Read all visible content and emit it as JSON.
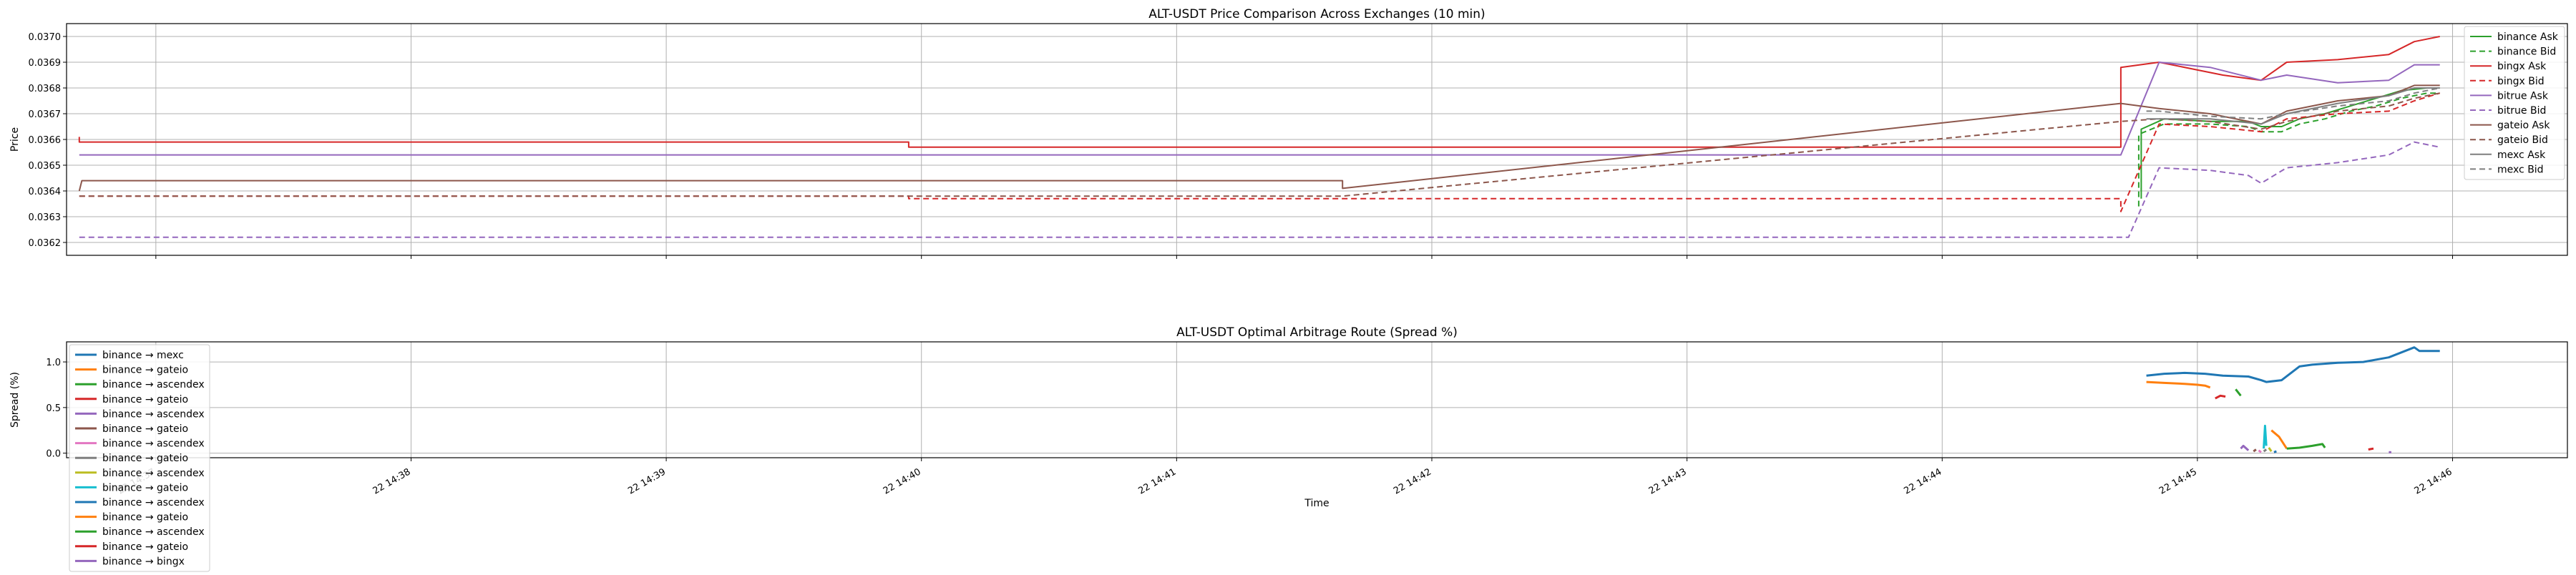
{
  "colors": {
    "binance": "#2ca02c",
    "bingx": "#d62728",
    "bitrue": "#9467bd",
    "gateio": "#8c564b",
    "mexc": "#7f7f7f",
    "grid": "#b0b0b0"
  },
  "chart_data": [
    {
      "type": "line",
      "title": "ALT-USDT Price Comparison Across Exchanges (10 min)",
      "xlabel": "",
      "ylabel": "Price",
      "x_unit": "minutes after 14:36",
      "xlim": [
        0.4,
        10.2
      ],
      "ylim": [
        0.03615,
        0.03705
      ],
      "yticks": [
        0.0362,
        0.0363,
        0.0364,
        0.0365,
        0.0366,
        0.0367,
        0.0368,
        0.0369,
        0.037
      ],
      "ytick_labels": [
        "0.0362",
        "0.0363",
        "0.0364",
        "0.0365",
        "0.0366",
        "0.0367",
        "0.0368",
        "0.0369",
        "0.0370"
      ],
      "grid": true,
      "legend_position": "upper-right",
      "series": [
        {
          "name": "binance Ask",
          "color": "#2ca02c",
          "dash": "solid",
          "x": [
            8.53,
            8.53,
            8.62,
            8.8,
            8.95,
            9.0,
            9.08,
            9.15,
            9.25,
            9.35,
            9.45,
            9.55,
            9.65,
            9.7
          ],
          "y": [
            0.03637,
            0.03664,
            0.03668,
            0.03667,
            0.03667,
            0.03665,
            0.03665,
            0.03668,
            0.0367,
            0.03673,
            0.03676,
            0.03679,
            0.0368,
            0.0368
          ]
        },
        {
          "name": "binance Bid",
          "color": "#2ca02c",
          "dash": "dashed",
          "x": [
            8.52,
            8.52,
            8.62,
            8.8,
            8.95,
            9.0,
            9.08,
            9.15,
            9.25,
            9.35,
            9.45,
            9.55,
            9.65,
            9.7
          ],
          "y": [
            0.03634,
            0.03662,
            0.03666,
            0.03666,
            0.03665,
            0.03663,
            0.03663,
            0.03666,
            0.03668,
            0.03671,
            0.03673,
            0.03676,
            0.03678,
            0.03678
          ]
        },
        {
          "name": "bingx Ask",
          "color": "#d62728",
          "dash": "solid",
          "x": [
            0.45,
            0.45,
            0.46,
            3.7,
            3.7,
            8.45,
            8.45,
            8.6,
            8.85,
            9.0,
            9.1,
            9.3,
            9.5,
            9.6,
            9.7
          ],
          "y": [
            0.03661,
            0.03659,
            0.03659,
            0.03659,
            0.03657,
            0.03657,
            0.03688,
            0.0369,
            0.03685,
            0.03683,
            0.0369,
            0.03691,
            0.03693,
            0.03698,
            0.037
          ]
        },
        {
          "name": "bingx Bid",
          "color": "#d62728",
          "dash": "dashed",
          "x": [
            0.45,
            3.7,
            3.7,
            8.45,
            8.45,
            8.6,
            8.8,
            9.0,
            9.1,
            9.3,
            9.5,
            9.6,
            9.7
          ],
          "y": [
            0.03638,
            0.03638,
            0.03637,
            0.03637,
            0.03632,
            0.03666,
            0.03665,
            0.03663,
            0.03668,
            0.0367,
            0.03671,
            0.03675,
            0.03678
          ]
        },
        {
          "name": "bitrue Ask",
          "color": "#9467bd",
          "dash": "solid",
          "x": [
            0.45,
            8.45,
            8.6,
            8.8,
            9.0,
            9.1,
            9.3,
            9.5,
            9.6,
            9.7
          ],
          "y": [
            0.03654,
            0.03654,
            0.0369,
            0.03688,
            0.03683,
            0.03685,
            0.03682,
            0.03683,
            0.03689,
            0.03689
          ]
        },
        {
          "name": "bitrue Bid",
          "color": "#9467bd",
          "dash": "dashed",
          "x": [
            0.45,
            8.48,
            8.6,
            8.8,
            8.95,
            9.0,
            9.1,
            9.3,
            9.5,
            9.6,
            9.7
          ],
          "y": [
            0.03622,
            0.03622,
            0.03649,
            0.03648,
            0.03646,
            0.03643,
            0.03649,
            0.03651,
            0.03654,
            0.03659,
            0.03657
          ]
        },
        {
          "name": "gateio Ask",
          "color": "#8c564b",
          "dash": "solid",
          "x": [
            0.45,
            0.46,
            5.4,
            5.4,
            8.45,
            8.6,
            8.8,
            9.0,
            9.1,
            9.3,
            9.5,
            9.6,
            9.7
          ],
          "y": [
            0.0364,
            0.03644,
            0.03644,
            0.03641,
            0.03674,
            0.03672,
            0.0367,
            0.03666,
            0.03671,
            0.03675,
            0.03677,
            0.03681,
            0.03681
          ]
        },
        {
          "name": "gateio Bid",
          "color": "#8c564b",
          "dash": "dashed",
          "x": [
            0.45,
            5.4,
            8.45,
            8.6,
            8.8,
            9.0,
            9.1,
            9.3,
            9.5,
            9.6,
            9.7
          ],
          "y": [
            0.03638,
            0.03638,
            0.03667,
            0.03668,
            0.03667,
            0.03664,
            0.03667,
            0.03671,
            0.03673,
            0.03676,
            0.03678
          ]
        },
        {
          "name": "mexc Ask",
          "color": "#7f7f7f",
          "dash": "solid",
          "x": [
            8.55,
            8.6,
            8.8,
            9.0,
            9.1,
            9.3,
            9.5,
            9.6,
            9.7
          ],
          "y": [
            0.03668,
            0.03668,
            0.03668,
            0.03666,
            0.0367,
            0.03674,
            0.03677,
            0.0368,
            0.0368
          ]
        },
        {
          "name": "mexc Bid",
          "color": "#7f7f7f",
          "dash": "dashed",
          "x": [
            8.55,
            8.6,
            8.8,
            9.0,
            9.1,
            9.3,
            9.5,
            9.6,
            9.7
          ],
          "y": [
            0.03671,
            0.03671,
            0.03669,
            0.03668,
            0.0367,
            0.03673,
            0.03675,
            0.03678,
            0.0368
          ]
        }
      ]
    },
    {
      "type": "line",
      "title": "ALT-USDT Optimal Arbitrage Route (Spread %)",
      "xlabel": "Time",
      "ylabel": "Spread (%)",
      "x_unit": "minutes after 14:36",
      "xlim": [
        0.4,
        10.2
      ],
      "ylim": [
        -0.05,
        1.22
      ],
      "yticks": [
        0.0,
        0.5,
        1.0
      ],
      "ytick_labels": [
        "0.0",
        "0.5",
        "1.0"
      ],
      "xticks": [
        0.75,
        1.75,
        2.75,
        3.75,
        4.75,
        5.75,
        6.75,
        7.75,
        8.75,
        9.75
      ],
      "xtick_labels": [
        "22 14:37",
        "22 14:38",
        "22 14:39",
        "22 14:40",
        "22 14:41",
        "22 14:42",
        "22 14:43",
        "22 14:44",
        "22 14:45",
        "22 14:46"
      ],
      "grid": true,
      "legend_position": "upper-left",
      "series": [
        {
          "name": "binance → mexc",
          "color": "#1f77b4",
          "x": [
            8.55,
            8.62,
            8.7,
            8.78,
            8.85,
            8.95,
            9.0,
            9.02,
            9.08,
            9.15,
            9.2,
            9.3,
            9.4,
            9.5,
            9.6,
            9.62,
            9.7
          ],
          "y": [
            0.85,
            0.87,
            0.88,
            0.87,
            0.85,
            0.84,
            0.8,
            0.78,
            0.8,
            0.95,
            0.97,
            0.99,
            1.0,
            1.05,
            1.16,
            1.12,
            1.12
          ]
        },
        {
          "name": "binance → gateio",
          "color": "#ff7f0e",
          "x": [
            8.55,
            8.62,
            8.7,
            8.75,
            8.78,
            8.8
          ],
          "y": [
            0.78,
            0.77,
            0.76,
            0.75,
            0.74,
            0.72
          ]
        },
        {
          "name": "binance → ascendex",
          "color": "#2ca02c",
          "x": [
            8.9,
            8.92
          ],
          "y": [
            0.7,
            0.63
          ]
        },
        {
          "name": "binance → gateio",
          "color": "#d62728",
          "x": [
            8.82,
            8.84,
            8.86
          ],
          "y": [
            0.6,
            0.63,
            0.62
          ]
        },
        {
          "name": "binance → ascendex",
          "color": "#9467bd",
          "x": [
            8.92,
            8.93,
            8.95
          ],
          "y": [
            0.05,
            0.08,
            0.03
          ]
        },
        {
          "name": "binance → gateio",
          "color": "#8c564b",
          "x": [
            8.97,
            8.98
          ],
          "y": [
            0.02,
            0.04
          ]
        },
        {
          "name": "binance → ascendex",
          "color": "#e377c2",
          "x": [
            8.99,
            9.0
          ],
          "y": [
            0.03,
            0.01
          ]
        },
        {
          "name": "binance → gateio",
          "color": "#7f7f7f",
          "x": [
            9.01,
            9.02
          ],
          "y": [
            0.02,
            0.04
          ]
        },
        {
          "name": "binance → ascendex",
          "color": "#bcbd22",
          "x": [
            9.03,
            9.04
          ],
          "y": [
            0.06,
            0.02
          ]
        },
        {
          "name": "binance → gateio",
          "color": "#17becf",
          "x": [
            9.01,
            9.015,
            9.02
          ],
          "y": [
            0.05,
            0.3,
            0.08
          ]
        },
        {
          "name": "binance → ascendex",
          "color": "#1f77b4",
          "x": [
            9.05,
            9.06
          ],
          "y": [
            0.01,
            0.02
          ]
        },
        {
          "name": "binance → gateio",
          "color": "#ff7f0e",
          "x": [
            9.04,
            9.07,
            9.1
          ],
          "y": [
            0.25,
            0.18,
            0.05
          ]
        },
        {
          "name": "binance → ascendex",
          "color": "#2ca02c",
          "x": [
            9.1,
            9.15,
            9.2,
            9.24,
            9.25
          ],
          "y": [
            0.05,
            0.06,
            0.08,
            0.1,
            0.06
          ]
        },
        {
          "name": "binance → gateio",
          "color": "#d62728",
          "x": [
            9.42,
            9.44
          ],
          "y": [
            0.04,
            0.05
          ]
        },
        {
          "name": "binance → bingx",
          "color": "#9467bd",
          "x": [
            9.5,
            9.51
          ],
          "y": [
            0.01,
            0.01
          ]
        }
      ]
    }
  ]
}
